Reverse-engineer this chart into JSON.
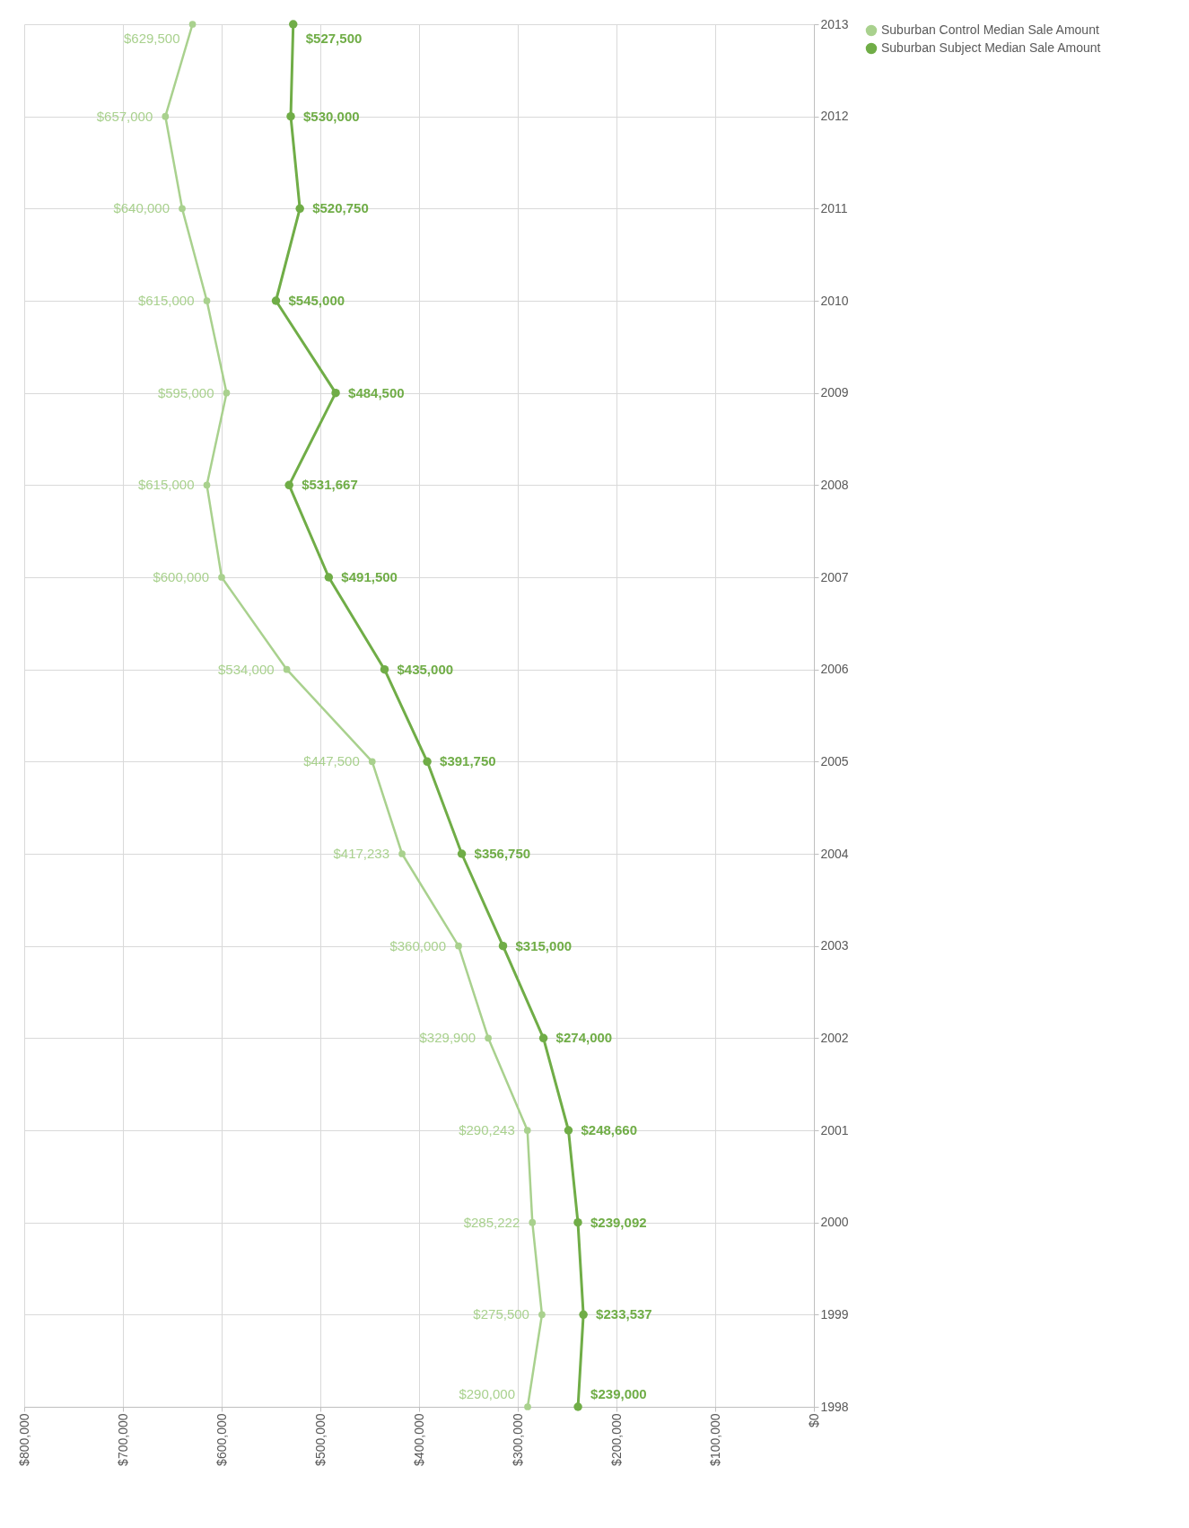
{
  "chart_data": {
    "type": "line",
    "orientation": "horizontal",
    "categories": [
      "2013",
      "2012",
      "2011",
      "2010",
      "2009",
      "2008",
      "2007",
      "2006",
      "2005",
      "2004",
      "2003",
      "2002",
      "2001",
      "2000",
      "1999",
      "1998"
    ],
    "series": [
      {
        "name": "Suburban Control Median Sale Amount",
        "color": "#a9d18e",
        "values": [
          629500,
          657000,
          640000,
          615000,
          595000,
          615000,
          600000,
          534000,
          447500,
          417233,
          360000,
          329900,
          290243,
          285222,
          275500,
          290000
        ],
        "value_labels": [
          "$629,500",
          "$657,000",
          "$640,000",
          "$615,000",
          "$595,000",
          "$615,000",
          "$600,000",
          "$534,000",
          "$447,500",
          "$417,233",
          "$360,000",
          "$329,900",
          "$290,243",
          "$285,222",
          "$275,500",
          "$290,000"
        ]
      },
      {
        "name": "Suburban Subject Median Sale Amount",
        "color": "#70ad47",
        "values": [
          527500,
          530000,
          520750,
          545000,
          484500,
          531667,
          491500,
          435000,
          391750,
          356750,
          315000,
          274000,
          248660,
          239092,
          233537,
          239000
        ],
        "value_labels": [
          "$527,500",
          "$530,000",
          "$520,750",
          "$545,000",
          "$484,500",
          "$531,667",
          "$491,500",
          "$435,000",
          "$391,750",
          "$356,750",
          "$315,000",
          "$274,000",
          "$248,660",
          "$239,092",
          "$233,537",
          "$239,000"
        ]
      }
    ],
    "xlim": [
      800000,
      0
    ],
    "xticks": [
      {
        "value": 800000,
        "label": "$800,000"
      },
      {
        "value": 700000,
        "label": "$700,000"
      },
      {
        "value": 600000,
        "label": "$600,000"
      },
      {
        "value": 500000,
        "label": "$500,000"
      },
      {
        "value": 400000,
        "label": "$400,000"
      },
      {
        "value": 300000,
        "label": "$300,000"
      },
      {
        "value": 200000,
        "label": "$200,000"
      },
      {
        "value": 100000,
        "label": "$100,000"
      },
      {
        "value": 0,
        "label": "$0"
      }
    ],
    "grid": true,
    "legend": "right",
    "marker": "circle",
    "line_style": "solid"
  }
}
